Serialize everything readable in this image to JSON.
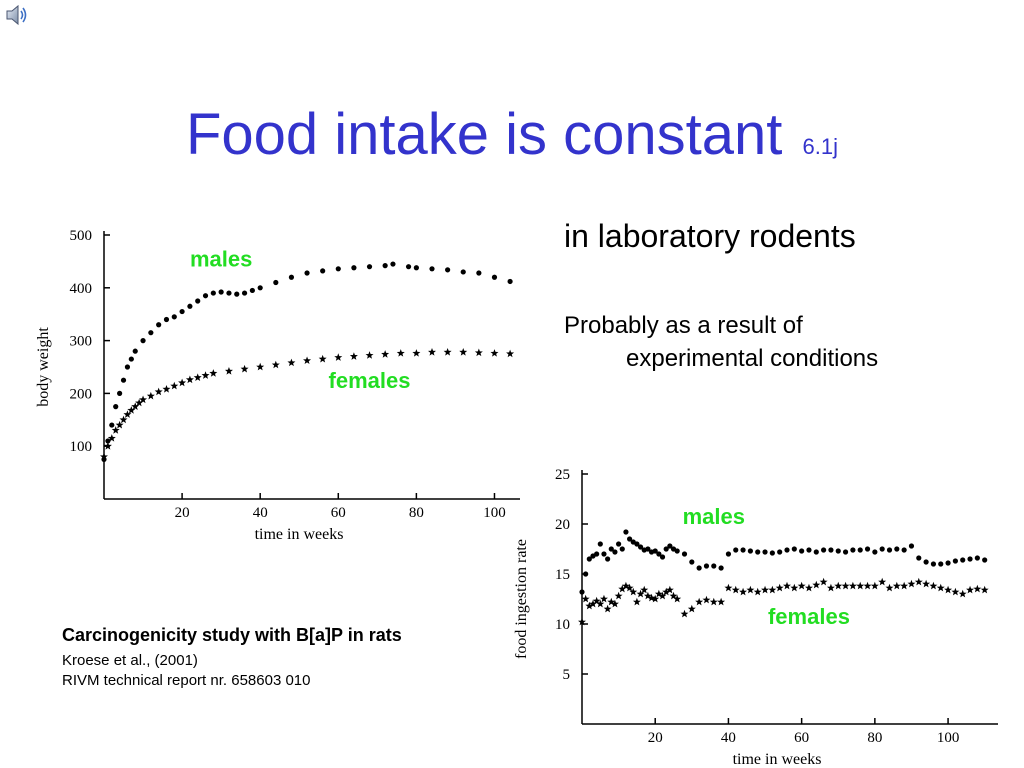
{
  "slide": {
    "title": "Food intake is constant",
    "title_suffix": "6.1j",
    "subtitle": "in laboratory rodents",
    "note_line1": "Probably as a result of",
    "note_line2": "experimental conditions",
    "citation": {
      "title": "Carcinogenicity study with B[a]P in rats",
      "line1": "Kroese et al., (2001)",
      "line2": "RIVM technical report nr. 658603 010"
    },
    "colors": {
      "title": "#3333cc",
      "series_label": "#22dd22"
    },
    "icons": [
      "speaker-icon"
    ]
  },
  "chart_data": [
    {
      "type": "scatter",
      "xlabel": "time  in  weeks",
      "ylabel": "body  weight",
      "xlim": [
        0,
        105
      ],
      "ylim": [
        0,
        500
      ],
      "xticks": [
        20,
        40,
        60,
        80,
        100
      ],
      "yticks": [
        100,
        200,
        300,
        400,
        500
      ],
      "series": [
        {
          "name": "males",
          "marker": "circle",
          "label_at": [
            30,
            440
          ],
          "x": [
            0,
            1,
            2,
            3,
            4,
            5,
            6,
            7,
            8,
            10,
            12,
            14,
            16,
            18,
            20,
            22,
            24,
            26,
            28,
            30,
            32,
            34,
            36,
            38,
            40,
            44,
            48,
            52,
            56,
            60,
            64,
            68,
            72,
            74,
            78,
            80,
            84,
            88,
            92,
            96,
            100,
            104
          ],
          "y": [
            75,
            110,
            140,
            175,
            200,
            225,
            250,
            265,
            280,
            300,
            315,
            330,
            340,
            345,
            355,
            365,
            375,
            385,
            390,
            392,
            390,
            388,
            390,
            395,
            400,
            410,
            420,
            428,
            432,
            436,
            438,
            440,
            442,
            445,
            440,
            438,
            436,
            434,
            430,
            428,
            420,
            412
          ]
        },
        {
          "name": "females",
          "marker": "star",
          "label_at": [
            68,
            210
          ],
          "x": [
            0,
            1,
            2,
            3,
            4,
            5,
            6,
            7,
            8,
            9,
            10,
            12,
            14,
            16,
            18,
            20,
            22,
            24,
            26,
            28,
            32,
            36,
            40,
            44,
            48,
            52,
            56,
            60,
            64,
            68,
            72,
            76,
            80,
            84,
            88,
            92,
            96,
            100,
            104
          ],
          "y": [
            80,
            100,
            115,
            130,
            140,
            150,
            160,
            168,
            175,
            182,
            188,
            195,
            203,
            208,
            214,
            220,
            226,
            230,
            234,
            238,
            242,
            246,
            250,
            254,
            258,
            262,
            265,
            268,
            270,
            272,
            274,
            276,
            276,
            278,
            278,
            278,
            277,
            276,
            275
          ]
        }
      ]
    },
    {
      "type": "scatter",
      "xlabel": "time  in  weeks",
      "ylabel": "food  ingestion  rate",
      "xlim": [
        0,
        112
      ],
      "ylim": [
        0,
        25
      ],
      "xticks": [
        20,
        40,
        60,
        80,
        100
      ],
      "yticks": [
        5,
        10,
        15,
        20,
        25
      ],
      "series": [
        {
          "name": "males",
          "marker": "circle",
          "label_at": [
            36,
            20
          ],
          "x": [
            0,
            1,
            2,
            3,
            4,
            5,
            6,
            7,
            8,
            9,
            10,
            11,
            12,
            13,
            14,
            15,
            16,
            17,
            18,
            19,
            20,
            21,
            22,
            23,
            24,
            25,
            26,
            28,
            30,
            32,
            34,
            36,
            38,
            40,
            42,
            44,
            46,
            48,
            50,
            52,
            54,
            56,
            58,
            60,
            62,
            64,
            66,
            68,
            70,
            72,
            74,
            76,
            78,
            80,
            82,
            84,
            86,
            88,
            90,
            92,
            94,
            96,
            98,
            100,
            102,
            104,
            106,
            108,
            110
          ],
          "y": [
            13.2,
            15.0,
            16.5,
            16.8,
            17.0,
            18.0,
            17.0,
            16.5,
            17.5,
            17.2,
            18.0,
            17.5,
            19.2,
            18.5,
            18.2,
            18.0,
            17.7,
            17.4,
            17.5,
            17.2,
            17.3,
            17.0,
            16.7,
            17.5,
            17.8,
            17.5,
            17.3,
            17.0,
            16.2,
            15.6,
            15.8,
            15.8,
            15.6,
            17.0,
            17.4,
            17.4,
            17.3,
            17.2,
            17.2,
            17.1,
            17.2,
            17.4,
            17.5,
            17.3,
            17.4,
            17.2,
            17.4,
            17.4,
            17.3,
            17.2,
            17.4,
            17.4,
            17.5,
            17.2,
            17.5,
            17.4,
            17.5,
            17.4,
            17.8,
            16.6,
            16.2,
            16.0,
            16.0,
            16.1,
            16.3,
            16.4,
            16.5,
            16.6,
            16.4
          ]
        },
        {
          "name": "females",
          "marker": "star",
          "label_at": [
            62,
            10
          ],
          "x": [
            0,
            1,
            2,
            3,
            4,
            5,
            6,
            7,
            8,
            9,
            10,
            11,
            12,
            13,
            14,
            15,
            16,
            17,
            18,
            19,
            20,
            21,
            22,
            23,
            24,
            25,
            26,
            28,
            30,
            32,
            34,
            36,
            38,
            40,
            42,
            44,
            46,
            48,
            50,
            52,
            54,
            56,
            58,
            60,
            62,
            64,
            66,
            68,
            70,
            72,
            74,
            76,
            78,
            80,
            82,
            84,
            86,
            88,
            90,
            92,
            94,
            96,
            98,
            100,
            102,
            104,
            106,
            108,
            110
          ],
          "y": [
            10.2,
            12.5,
            11.8,
            12.0,
            12.3,
            12.0,
            12.5,
            11.5,
            12.2,
            12.0,
            12.8,
            13.5,
            13.8,
            13.6,
            13.2,
            12.2,
            13.0,
            13.4,
            12.8,
            12.6,
            12.5,
            13.0,
            12.8,
            13.2,
            13.4,
            12.8,
            12.5,
            11.0,
            11.5,
            12.2,
            12.4,
            12.2,
            12.2,
            13.6,
            13.4,
            13.2,
            13.4,
            13.2,
            13.4,
            13.4,
            13.6,
            13.8,
            13.6,
            13.8,
            13.6,
            13.9,
            14.2,
            13.6,
            13.8,
            13.8,
            13.8,
            13.8,
            13.8,
            13.8,
            14.2,
            13.6,
            13.8,
            13.8,
            14.0,
            14.2,
            14.0,
            13.8,
            13.6,
            13.4,
            13.2,
            13.0,
            13.4,
            13.5,
            13.4
          ]
        }
      ]
    }
  ]
}
